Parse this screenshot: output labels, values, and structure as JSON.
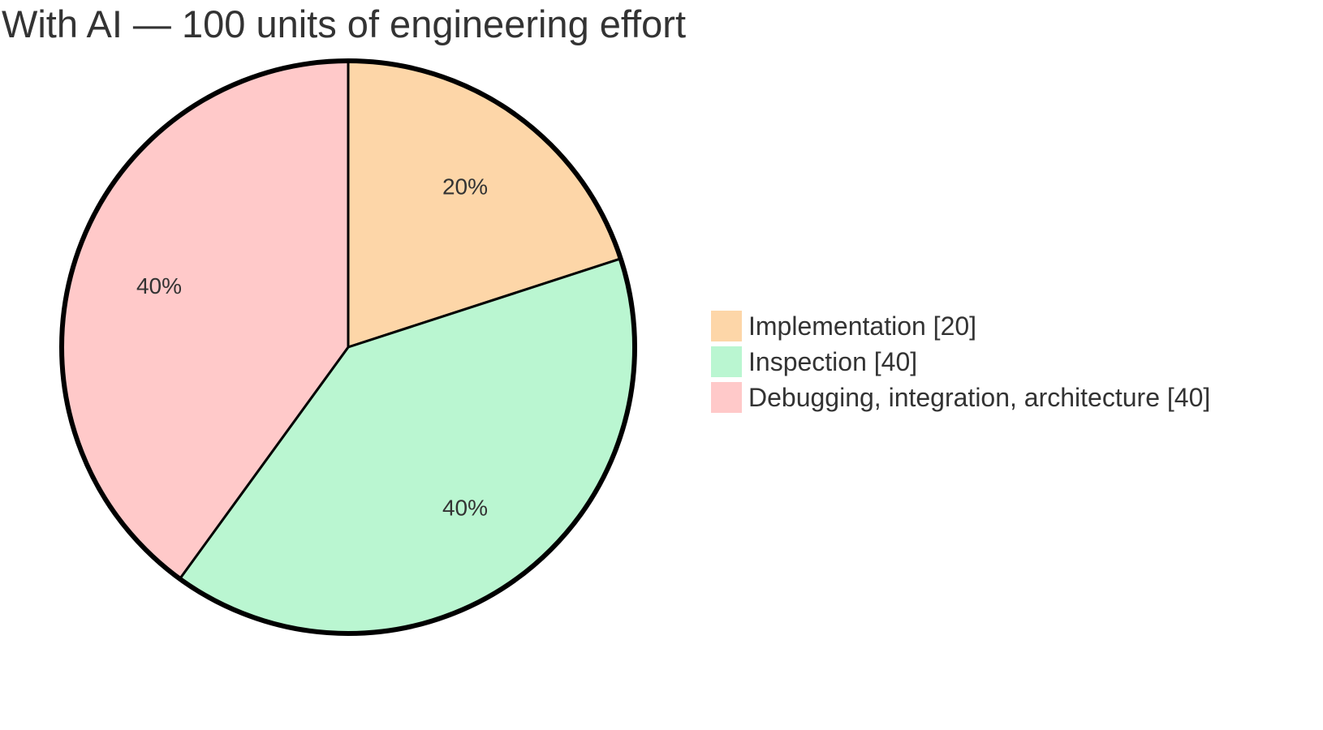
{
  "chart_data": {
    "type": "pie",
    "title": "With AI — 100 units of engineering effort",
    "slices": [
      {
        "label": "Implementation [20]",
        "value": 20,
        "percent_label": "20%",
        "color": "#FDD6A8"
      },
      {
        "label": "Inspection [40]",
        "value": 40,
        "percent_label": "40%",
        "color": "#BAF6D1"
      },
      {
        "label": "Debugging, integration, architecture [40]",
        "value": 40,
        "percent_label": "40%",
        "color": "#FFC9C9"
      }
    ],
    "legend_placement": "right"
  }
}
